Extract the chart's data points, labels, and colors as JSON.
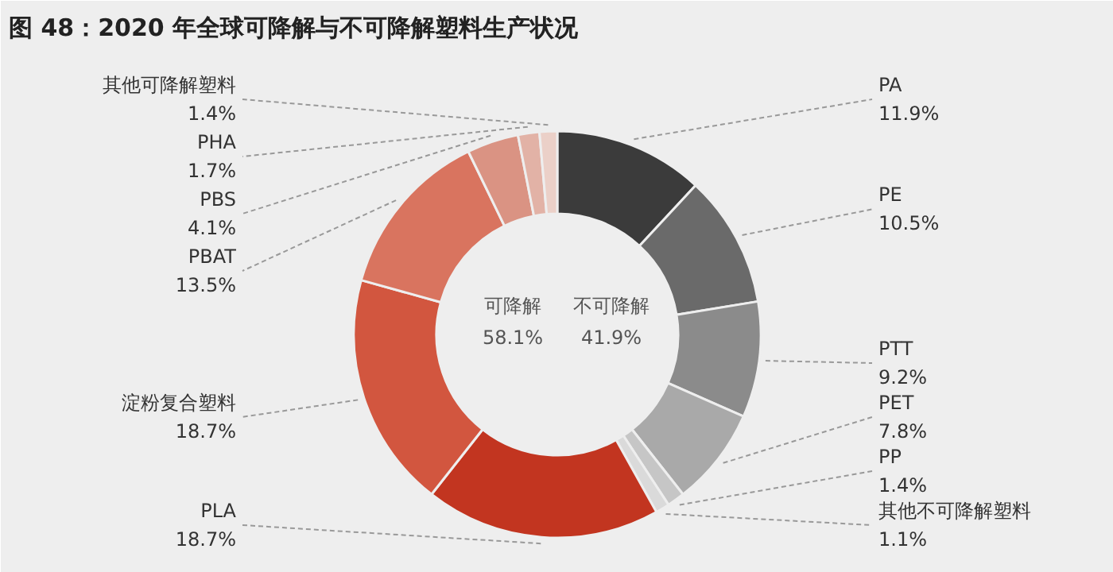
{
  "chart_data": {
    "type": "donut",
    "title": "图 48：2020 年全球可降解与不可降解塑料生产状况",
    "categories": [
      "PA",
      "PE",
      "PTT",
      "PET",
      "PP",
      "其他不可降解塑料",
      "PLA",
      "淀粉复合塑料",
      "PBAT",
      "PBS",
      "PHA",
      "其他可降解塑料"
    ],
    "values": [
      11.9,
      10.5,
      9.2,
      7.8,
      1.4,
      1.1,
      18.7,
      18.7,
      13.5,
      4.1,
      1.7,
      1.4
    ],
    "value_labels": [
      "11.9%",
      "10.5%",
      "9.2%",
      "7.8%",
      "1.4%",
      "1.1%",
      "18.7%",
      "18.7%",
      "13.5%",
      "4.1%",
      "1.7%",
      "1.4%"
    ],
    "colors": [
      "#3b3b3b",
      "#6a6a6a",
      "#8b8b8b",
      "#a9a9a9",
      "#c6c6c6",
      "#dadada",
      "#c23520",
      "#d2563f",
      "#d9745f",
      "#da9383",
      "#e2b2a6",
      "#ebd0c8"
    ],
    "annotations": [
      "可降解\n58.1%",
      "不可降解\n41.9%"
    ]
  }
}
